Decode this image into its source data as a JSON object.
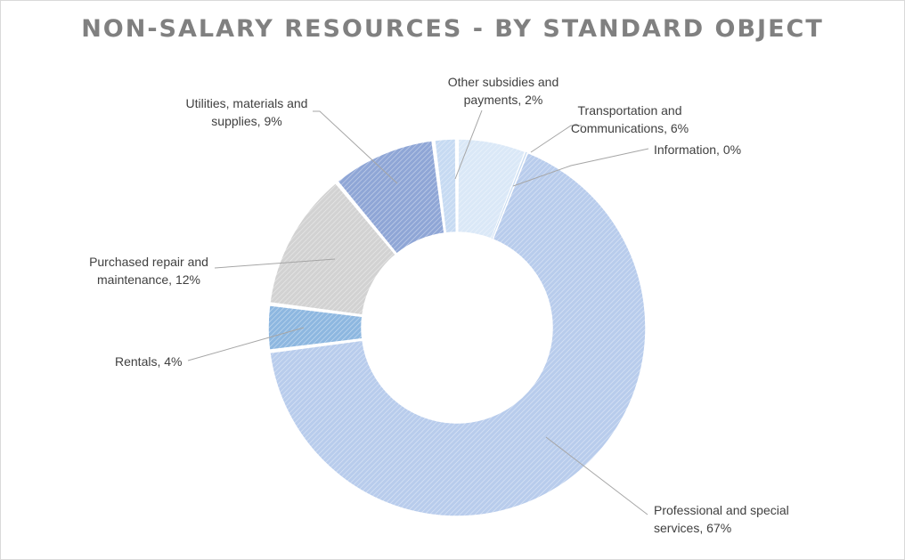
{
  "chart_data": {
    "type": "pie",
    "title": "NON-SALARY RESOURCES - BY STANDARD OBJECT",
    "donut": true,
    "slices": [
      {
        "label": "Transportation and Communications",
        "value": 6,
        "color": "#dae8f7",
        "display": "Transportation and Communications, 6%"
      },
      {
        "label": "Information",
        "value": 0,
        "color": "#c9dcf2",
        "display": "Information, 0%"
      },
      {
        "label": "Professional and special services",
        "value": 67,
        "color": "#b8ccec",
        "display": "Professional and special services, 67%"
      },
      {
        "label": "Rentals",
        "value": 4,
        "color": "#8db7e0",
        "display": "Rentals, 4%"
      },
      {
        "label": "Purchased repair and maintenance",
        "value": 12,
        "color": "#d2d2d2",
        "display": "Purchased repair and maintenance, 12%"
      },
      {
        "label": "Utilities, materials and supplies",
        "value": 9,
        "color": "#8fa6d6",
        "display": "Utilities, materials and supplies, 9%"
      },
      {
        "label": "Other subsidies and payments",
        "value": 2,
        "color": "#c6daf2",
        "display": "Other subsidies and payments, 2%"
      }
    ]
  }
}
